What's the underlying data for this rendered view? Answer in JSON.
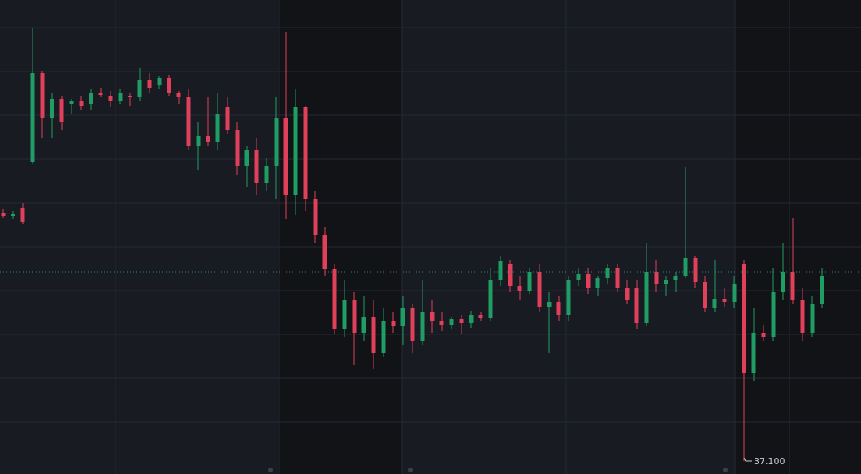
{
  "chart_data": {
    "type": "candlestick",
    "ylim": [
      37.084,
      37.668
    ],
    "up_color": "#1f9d64",
    "down_color": "#e0405a",
    "open": [
      37.406,
      37.402,
      37.412,
      37.468,
      37.578,
      37.523,
      37.546,
      37.54,
      37.543,
      37.54,
      37.554,
      37.55,
      37.543,
      37.55,
      37.548,
      37.57,
      37.563,
      37.572,
      37.553,
      37.548,
      37.488,
      37.5,
      37.493,
      37.536,
      37.508,
      37.463,
      37.483,
      37.443,
      37.463,
      37.523,
      37.428,
      37.536,
      37.423,
      37.378,
      37.336,
      37.263,
      37.298,
      37.258,
      37.278,
      37.233,
      37.273,
      37.266,
      37.288,
      37.248,
      37.283,
      37.273,
      37.268,
      37.275,
      37.27,
      37.28,
      37.276,
      37.323,
      37.343,
      37.316,
      37.31,
      37.333,
      37.29,
      37.296,
      37.28,
      37.323,
      37.33,
      37.313,
      37.326,
      37.338,
      37.313,
      37.313,
      37.27,
      37.333,
      37.318,
      37.323,
      37.328,
      37.35,
      37.32,
      37.288,
      37.3,
      37.296,
      37.343,
      37.208,
      37.258,
      37.253,
      37.308,
      37.333,
      37.298,
      37.258,
      37.293
    ],
    "high": [
      37.41,
      37.408,
      37.418,
      37.633,
      37.58,
      37.553,
      37.55,
      37.546,
      37.55,
      37.558,
      37.56,
      37.556,
      37.558,
      37.554,
      37.584,
      37.578,
      37.574,
      37.576,
      37.556,
      37.558,
      37.518,
      37.548,
      37.553,
      37.548,
      37.518,
      37.488,
      37.498,
      37.473,
      37.548,
      37.628,
      37.558,
      37.538,
      37.433,
      37.388,
      37.343,
      37.323,
      37.308,
      37.303,
      37.298,
      37.288,
      37.283,
      37.303,
      37.293,
      37.323,
      37.298,
      37.283,
      37.278,
      37.28,
      37.285,
      37.283,
      37.338,
      37.353,
      37.348,
      37.328,
      37.338,
      37.343,
      37.308,
      37.303,
      37.328,
      37.338,
      37.338,
      37.328,
      37.343,
      37.343,
      37.323,
      37.323,
      37.368,
      37.348,
      37.328,
      37.333,
      37.462,
      37.353,
      37.328,
      37.348,
      37.313,
      37.328,
      37.348,
      37.288,
      37.268,
      37.338,
      37.368,
      37.4,
      37.313,
      37.303,
      37.338
    ],
    "low": [
      37.4,
      37.398,
      37.392,
      37.466,
      37.498,
      37.498,
      37.508,
      37.528,
      37.533,
      37.533,
      37.548,
      37.536,
      37.54,
      37.538,
      37.543,
      37.553,
      37.558,
      37.55,
      37.54,
      37.483,
      37.458,
      37.488,
      37.483,
      37.503,
      37.453,
      37.438,
      37.428,
      37.433,
      37.423,
      37.398,
      37.403,
      37.408,
      37.368,
      37.328,
      37.256,
      37.253,
      37.218,
      37.248,
      37.213,
      37.228,
      37.258,
      37.243,
      37.233,
      37.243,
      37.258,
      37.26,
      37.263,
      37.256,
      37.264,
      37.272,
      37.273,
      37.316,
      37.308,
      37.298,
      37.306,
      37.283,
      37.233,
      37.273,
      37.273,
      37.316,
      37.306,
      37.303,
      37.318,
      37.308,
      37.293,
      37.263,
      37.266,
      37.308,
      37.303,
      37.308,
      37.326,
      37.313,
      37.283,
      37.283,
      37.29,
      37.288,
      37.1,
      37.198,
      37.248,
      37.248,
      37.298,
      37.293,
      37.248,
      37.253,
      37.288
    ],
    "close": [
      37.402,
      37.404,
      37.394,
      37.578,
      37.523,
      37.546,
      37.518,
      37.543,
      37.538,
      37.554,
      37.551,
      37.543,
      37.553,
      37.548,
      37.57,
      37.56,
      37.572,
      37.553,
      37.548,
      37.488,
      37.5,
      37.493,
      37.528,
      37.508,
      37.463,
      37.483,
      37.443,
      37.463,
      37.523,
      37.428,
      37.536,
      37.423,
      37.378,
      37.336,
      37.263,
      37.298,
      37.258,
      37.278,
      37.233,
      37.273,
      37.266,
      37.288,
      37.248,
      37.283,
      37.273,
      37.268,
      37.275,
      37.27,
      37.28,
      37.276,
      37.323,
      37.346,
      37.316,
      37.31,
      37.333,
      37.29,
      37.296,
      37.28,
      37.323,
      37.33,
      37.313,
      37.326,
      37.338,
      37.313,
      37.298,
      37.27,
      37.333,
      37.318,
      37.323,
      37.328,
      37.35,
      37.32,
      37.288,
      37.3,
      37.296,
      37.318,
      37.208,
      37.258,
      37.253,
      37.308,
      37.333,
      37.298,
      37.258,
      37.293,
      37.328
    ],
    "low_label": {
      "value": 37.1,
      "label": "37.100"
    }
  }
}
